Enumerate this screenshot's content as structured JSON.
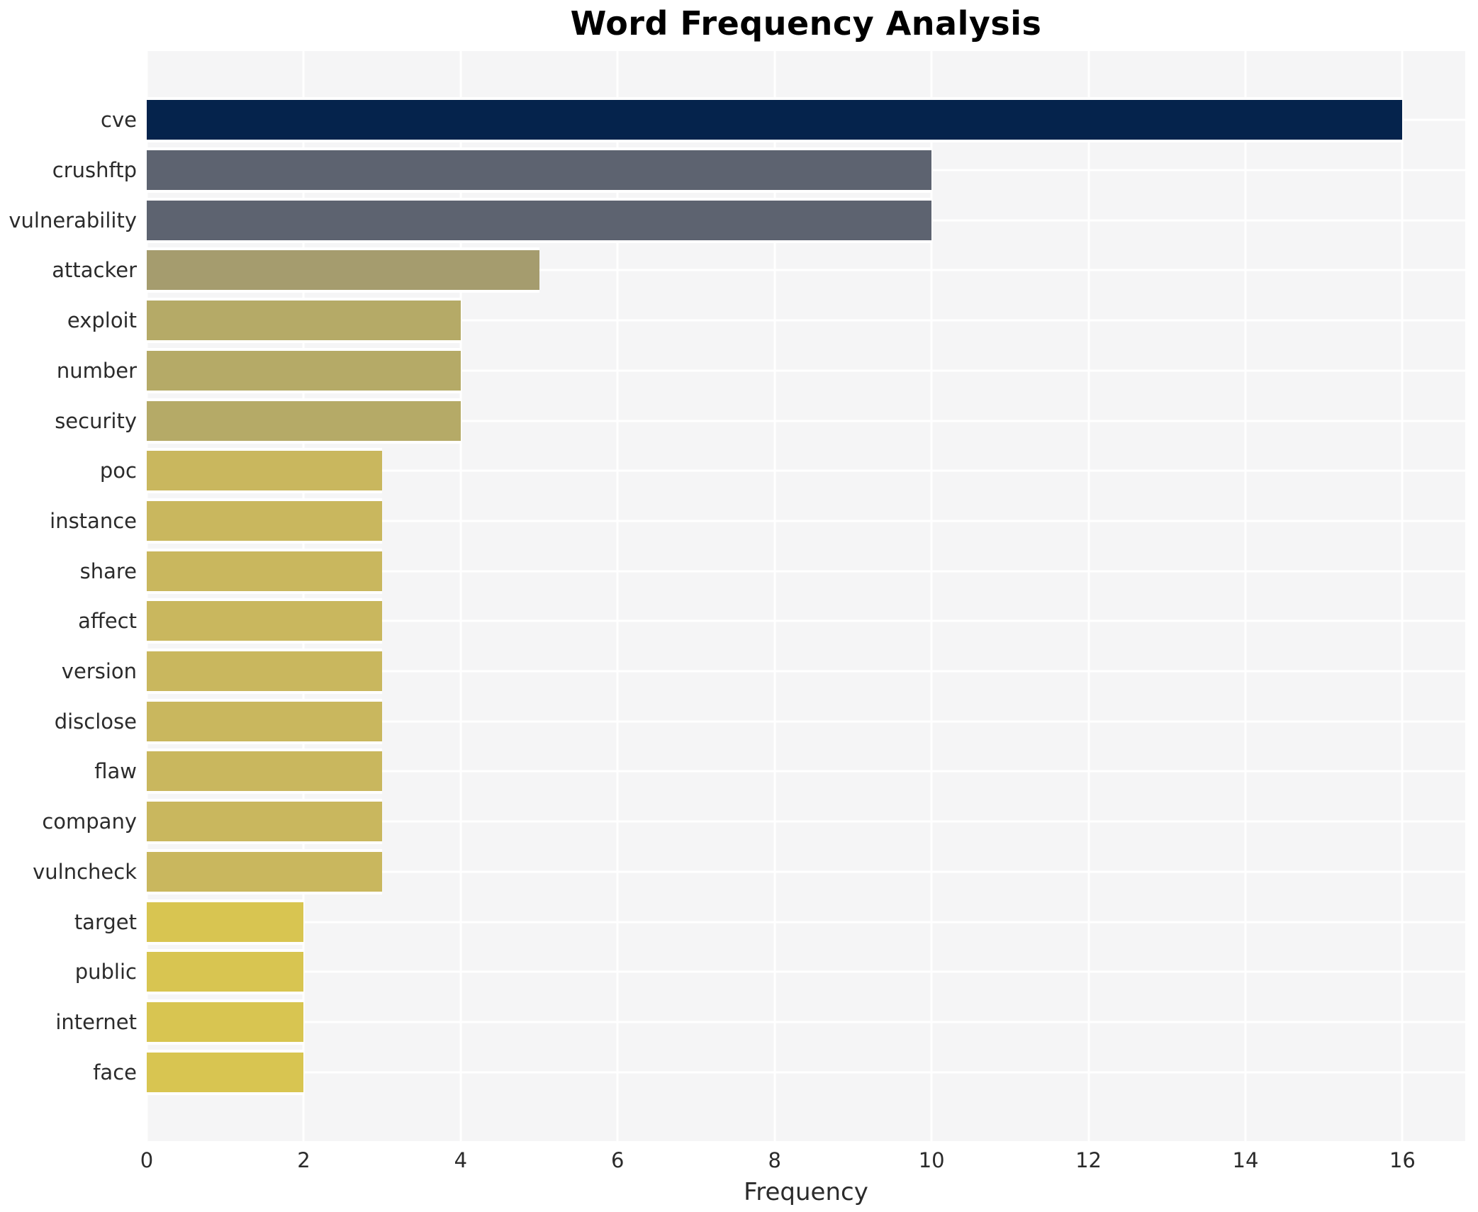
{
  "chart_data": {
    "type": "bar",
    "orientation": "horizontal",
    "title": "Word Frequency Analysis",
    "xlabel": "Frequency",
    "categories": [
      "cve",
      "crushftp",
      "vulnerability",
      "attacker",
      "exploit",
      "number",
      "security",
      "poc",
      "instance",
      "share",
      "affect",
      "version",
      "disclose",
      "flaw",
      "company",
      "vulncheck",
      "target",
      "public",
      "internet",
      "face"
    ],
    "values": [
      16,
      10,
      10,
      5,
      4,
      4,
      4,
      3,
      3,
      3,
      3,
      3,
      3,
      3,
      3,
      3,
      2,
      2,
      2,
      2
    ],
    "bar_colors": [
      "#05234c",
      "#5d6370",
      "#5d6370",
      "#a59c6e",
      "#b5aa67",
      "#b5aa67",
      "#b5aa67",
      "#c9b75e",
      "#c9b75e",
      "#c9b75e",
      "#c9b75e",
      "#c9b75e",
      "#c9b75e",
      "#c9b75e",
      "#c9b75e",
      "#c9b75e",
      "#d8c551",
      "#d8c551",
      "#d8c551",
      "#d8c551"
    ],
    "xticks": [
      0,
      2,
      4,
      6,
      8,
      10,
      12,
      14,
      16
    ],
    "xlim": [
      0,
      16.8
    ],
    "grid": true,
    "legend": false,
    "panel_background": "#f5f5f6",
    "grid_color": "#ffffff",
    "figure_background": "#ffffff",
    "title_color": "#000000",
    "tick_text_color": "#2b2b2b"
  }
}
